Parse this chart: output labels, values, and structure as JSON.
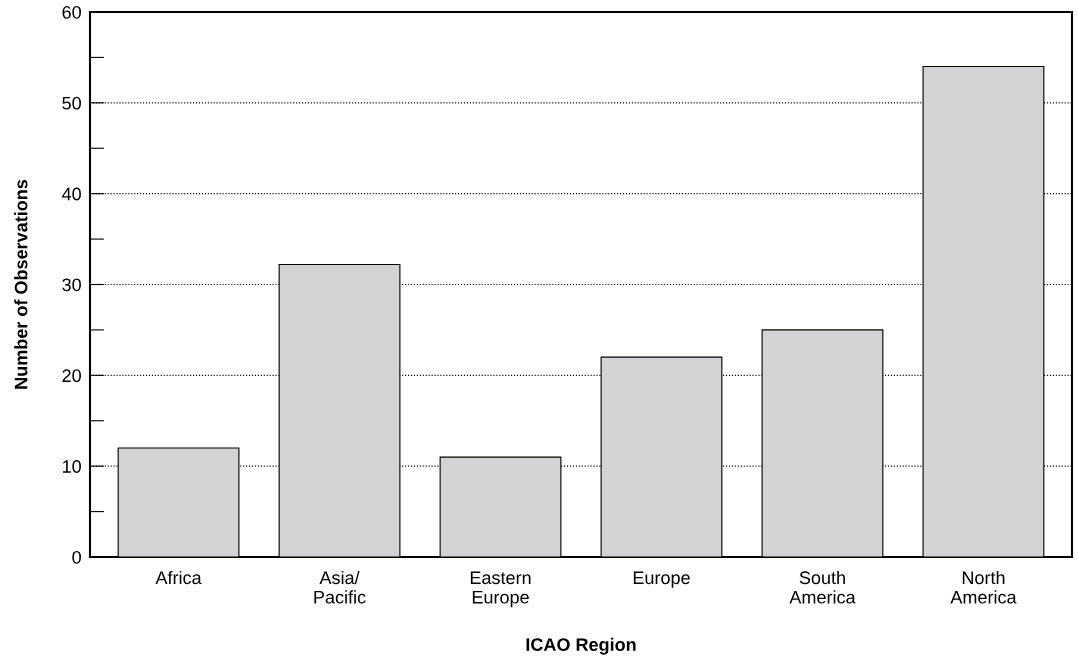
{
  "chart_data": {
    "type": "bar",
    "xlabel": "ICAO Region",
    "ylabel": "Number of Observations",
    "categories": [
      "Africa",
      "Asia/\nPacific",
      "Eastern\nEurope",
      "Europe",
      "South\nAmerica",
      "North\nAmerica"
    ],
    "values": [
      12,
      32.2,
      11,
      22,
      25,
      54
    ],
    "color": "#d3d3d5",
    "ylim": [
      0,
      60
    ],
    "yticks": [
      0,
      {
        "value": 5,
        "label": null
      },
      10,
      {
        "value": 15,
        "label": null
      },
      20,
      {
        "value": 25,
        "label": null
      },
      30,
      {
        "value": 35,
        "label": null
      },
      40,
      {
        "value": 45,
        "label": null
      },
      50,
      {
        "value": 55,
        "label": null
      },
      60
    ],
    "grid": "y",
    "line_style": "dotted"
  }
}
